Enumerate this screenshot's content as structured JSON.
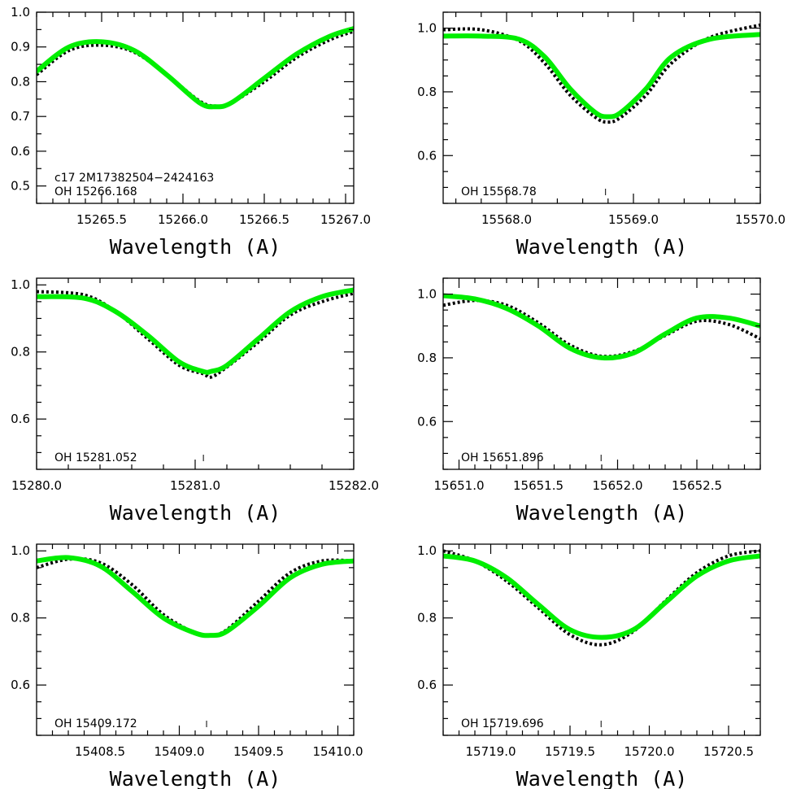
{
  "colors": {
    "model": "#00ee00",
    "observed": "#000000",
    "axes": "#000000"
  },
  "chart_data": [
    {
      "type": "line",
      "xlim": [
        15265.1,
        15267.05
      ],
      "ylim": [
        0.45,
        1.0
      ],
      "xticks": [
        15265.5,
        15266.0,
        15266.5,
        15267.0
      ],
      "xtick_labels": [
        "15265.5",
        "15266.0",
        "15266.5",
        "15267.0"
      ],
      "yticks": [
        0.5,
        0.6,
        0.7,
        0.8,
        0.9,
        1.0
      ],
      "ytick_labels": [
        "0.5",
        "0.6",
        "0.7",
        "0.8",
        "0.9",
        "1.0"
      ],
      "xlabel": "Wavelength (A)",
      "annotations": [
        "c17 2M17382504−2424163",
        "OH 15266.168"
      ],
      "line_center": null,
      "series": [
        {
          "style": "dotted-black",
          "x": [
            15265.1,
            15265.3,
            15265.5,
            15265.7,
            15265.9,
            15266.1,
            15266.2,
            15266.3,
            15266.5,
            15266.7,
            15266.9,
            15267.05
          ],
          "y": [
            0.82,
            0.89,
            0.905,
            0.885,
            0.82,
            0.745,
            0.73,
            0.74,
            0.8,
            0.87,
            0.92,
            0.945
          ]
        },
        {
          "style": "solid-green",
          "x": [
            15265.1,
            15265.3,
            15265.5,
            15265.7,
            15265.9,
            15266.1,
            15266.2,
            15266.3,
            15266.5,
            15266.7,
            15266.9,
            15267.05
          ],
          "y": [
            0.83,
            0.9,
            0.915,
            0.89,
            0.82,
            0.74,
            0.728,
            0.74,
            0.81,
            0.88,
            0.93,
            0.953
          ]
        }
      ]
    },
    {
      "type": "line",
      "xlim": [
        15567.5,
        15570.0
      ],
      "ylim": [
        0.45,
        1.05
      ],
      "xticks": [
        15568.0,
        15569.0,
        15570.0
      ],
      "xtick_labels": [
        "15568.0",
        "15569.0",
        "15570.0"
      ],
      "yticks": [
        0.6,
        0.8,
        1.0
      ],
      "ytick_labels": [
        "0.6",
        "0.8",
        "1.0"
      ],
      "xlabel": "Wavelength (A)",
      "annotations": [
        "OH 15568.78"
      ],
      "line_center": 15568.78,
      "series": [
        {
          "style": "dotted-black",
          "x": [
            15567.5,
            15567.8,
            15568.1,
            15568.3,
            15568.5,
            15568.7,
            15568.8,
            15568.9,
            15569.1,
            15569.3,
            15569.6,
            15570.0
          ],
          "y": [
            0.995,
            0.995,
            0.96,
            0.89,
            0.79,
            0.72,
            0.705,
            0.72,
            0.79,
            0.89,
            0.97,
            1.01
          ]
        },
        {
          "style": "solid-green",
          "x": [
            15567.5,
            15567.8,
            15568.1,
            15568.3,
            15568.5,
            15568.7,
            15568.8,
            15568.9,
            15569.1,
            15569.3,
            15569.6,
            15570.0
          ],
          "y": [
            0.975,
            0.975,
            0.965,
            0.91,
            0.81,
            0.735,
            0.722,
            0.735,
            0.81,
            0.91,
            0.965,
            0.98
          ]
        }
      ]
    },
    {
      "type": "line",
      "xlim": [
        15280.0,
        15282.0
      ],
      "ylim": [
        0.45,
        1.02
      ],
      "xticks": [
        15280.0,
        15281.0,
        15282.0
      ],
      "xtick_labels": [
        "15280.0",
        "15281.0",
        "15282.0"
      ],
      "yticks": [
        0.6,
        0.8,
        1.0
      ],
      "ytick_labels": [
        "0.6",
        "0.8",
        "1.0"
      ],
      "xlabel": "Wavelength (A)",
      "annotations": [
        "OH 15281.052"
      ],
      "line_center": 15281.052,
      "series": [
        {
          "style": "dotted-black",
          "x": [
            15280.0,
            15280.3,
            15280.5,
            15280.7,
            15280.9,
            15281.05,
            15281.1,
            15281.2,
            15281.4,
            15281.6,
            15281.8,
            15282.0
          ],
          "y": [
            0.98,
            0.97,
            0.92,
            0.84,
            0.76,
            0.735,
            0.725,
            0.755,
            0.83,
            0.91,
            0.95,
            0.975
          ]
        },
        {
          "style": "solid-green",
          "x": [
            15280.0,
            15280.3,
            15280.5,
            15280.7,
            15280.9,
            15281.05,
            15281.1,
            15281.2,
            15281.4,
            15281.6,
            15281.8,
            15282.0
          ],
          "y": [
            0.965,
            0.96,
            0.92,
            0.85,
            0.77,
            0.742,
            0.742,
            0.76,
            0.84,
            0.92,
            0.965,
            0.985
          ]
        }
      ]
    },
    {
      "type": "line",
      "xlim": [
        15650.9,
        15652.9
      ],
      "ylim": [
        0.45,
        1.05
      ],
      "xticks": [
        15651.0,
        15651.5,
        15652.0,
        15652.5
      ],
      "xtick_labels": [
        "15651.0",
        "15651.5",
        "15652.0",
        "15652.5"
      ],
      "yticks": [
        0.6,
        0.8,
        1.0
      ],
      "ytick_labels": [
        "0.6",
        "0.8",
        "1.0"
      ],
      "xlabel": "Wavelength (A)",
      "annotations": [
        "OH 15651.896"
      ],
      "line_center": 15651.896,
      "series": [
        {
          "style": "dotted-black",
          "x": [
            15650.9,
            15651.1,
            15651.3,
            15651.5,
            15651.7,
            15651.9,
            15652.1,
            15652.3,
            15652.5,
            15652.7,
            15652.9
          ],
          "y": [
            0.965,
            0.98,
            0.965,
            0.91,
            0.84,
            0.805,
            0.82,
            0.87,
            0.915,
            0.905,
            0.86
          ]
        },
        {
          "style": "solid-green",
          "x": [
            15650.9,
            15651.1,
            15651.3,
            15651.5,
            15651.7,
            15651.9,
            15652.1,
            15652.3,
            15652.5,
            15652.7,
            15652.9
          ],
          "y": [
            0.995,
            0.985,
            0.955,
            0.9,
            0.83,
            0.8,
            0.815,
            0.875,
            0.925,
            0.925,
            0.9
          ]
        }
      ]
    },
    {
      "type": "line",
      "xlim": [
        15408.1,
        15410.1
      ],
      "ylim": [
        0.45,
        1.02
      ],
      "xticks": [
        15408.5,
        15409.0,
        15409.5,
        15410.0
      ],
      "xtick_labels": [
        "15408.5",
        "15409.0",
        "15409.5",
        "15410.0"
      ],
      "yticks": [
        0.6,
        0.8,
        1.0
      ],
      "ytick_labels": [
        "0.6",
        "0.8",
        "1.0"
      ],
      "xlabel": "Wavelength (A)",
      "annotations": [
        "OH 15409.172"
      ],
      "line_center": 15409.172,
      "series": [
        {
          "style": "dotted-black",
          "x": [
            15408.1,
            15408.3,
            15408.5,
            15408.7,
            15408.9,
            15409.1,
            15409.2,
            15409.3,
            15409.5,
            15409.7,
            15409.9,
            15410.1
          ],
          "y": [
            0.95,
            0.975,
            0.965,
            0.9,
            0.81,
            0.755,
            0.748,
            0.765,
            0.85,
            0.935,
            0.97,
            0.97
          ]
        },
        {
          "style": "solid-green",
          "x": [
            15408.1,
            15408.3,
            15408.5,
            15408.7,
            15408.9,
            15409.1,
            15409.2,
            15409.3,
            15409.5,
            15409.7,
            15409.9,
            15410.1
          ],
          "y": [
            0.97,
            0.98,
            0.955,
            0.88,
            0.8,
            0.755,
            0.748,
            0.76,
            0.835,
            0.92,
            0.96,
            0.97
          ]
        }
      ]
    },
    {
      "type": "line",
      "xlim": [
        15718.7,
        15720.7
      ],
      "ylim": [
        0.45,
        1.02
      ],
      "xticks": [
        15719.0,
        15719.5,
        15720.0,
        15720.5
      ],
      "xtick_labels": [
        "15719.0",
        "15719.5",
        "15720.0",
        "15720.5"
      ],
      "yticks": [
        0.6,
        0.8,
        1.0
      ],
      "ytick_labels": [
        "0.6",
        "0.8",
        "1.0"
      ],
      "xlabel": "Wavelength (A)",
      "annotations": [
        "OH 15719.696"
      ],
      "line_center": 15719.696,
      "series": [
        {
          "style": "dotted-black",
          "x": [
            15718.7,
            15718.9,
            15719.1,
            15719.3,
            15719.5,
            15719.7,
            15719.9,
            15720.1,
            15720.3,
            15720.5,
            15720.7
          ],
          "y": [
            1.0,
            0.97,
            0.91,
            0.83,
            0.75,
            0.72,
            0.76,
            0.85,
            0.935,
            0.985,
            1.0
          ]
        },
        {
          "style": "solid-green",
          "x": [
            15718.7,
            15718.9,
            15719.1,
            15719.3,
            15719.5,
            15719.7,
            15719.9,
            15720.1,
            15720.3,
            15720.5,
            15720.7
          ],
          "y": [
            0.985,
            0.97,
            0.92,
            0.84,
            0.765,
            0.742,
            0.765,
            0.845,
            0.925,
            0.97,
            0.985
          ]
        }
      ]
    }
  ]
}
